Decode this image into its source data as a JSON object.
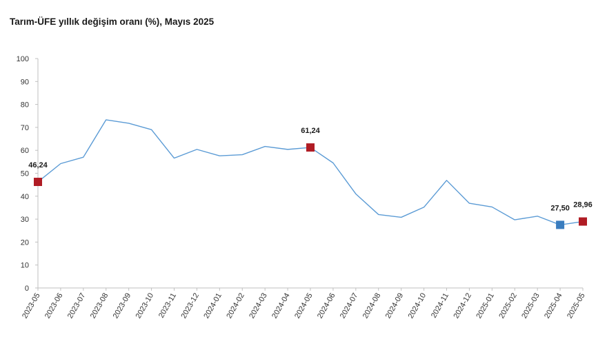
{
  "chart_data": {
    "type": "line",
    "title": "Tarım-ÜFE yıllık değişim oranı (%), Mayıs 2025",
    "xlabel": "",
    "ylabel": "",
    "ylim": [
      0,
      100
    ],
    "yticks": [
      0,
      10,
      20,
      30,
      40,
      50,
      60,
      70,
      80,
      90,
      100
    ],
    "grid": false,
    "legend": "none",
    "categories": [
      "2023-05",
      "2023-06",
      "2023-07",
      "2023-08",
      "2023-09",
      "2023-10",
      "2023-11",
      "2023-12",
      "2024-01",
      "2024-02",
      "2024-03",
      "2024-04",
      "2024-05",
      "2024-06",
      "2024-07",
      "2024-08",
      "2024-09",
      "2024-10",
      "2024-11",
      "2024-12",
      "2025-01",
      "2025-02",
      "2025-03",
      "2025-04",
      "2025-05"
    ],
    "series": [
      {
        "color": "#5b9bd5",
        "values": [
          46.24,
          54.2,
          57.0,
          73.3,
          71.8,
          69.0,
          56.6,
          60.4,
          57.6,
          58.1,
          61.7,
          60.4,
          61.24,
          54.5,
          41.0,
          32.0,
          30.8,
          35.2,
          46.9,
          36.9,
          35.3,
          29.7,
          31.3,
          27.5,
          28.96
        ]
      }
    ],
    "highlights": [
      {
        "index": 0,
        "label": "46,24",
        "color": "#b01c24"
      },
      {
        "index": 12,
        "label": "61,24",
        "color": "#b01c24"
      },
      {
        "index": 23,
        "label": "27,50",
        "color": "#3a7dbf"
      },
      {
        "index": 24,
        "label": "28,96",
        "color": "#b01c24"
      }
    ]
  }
}
